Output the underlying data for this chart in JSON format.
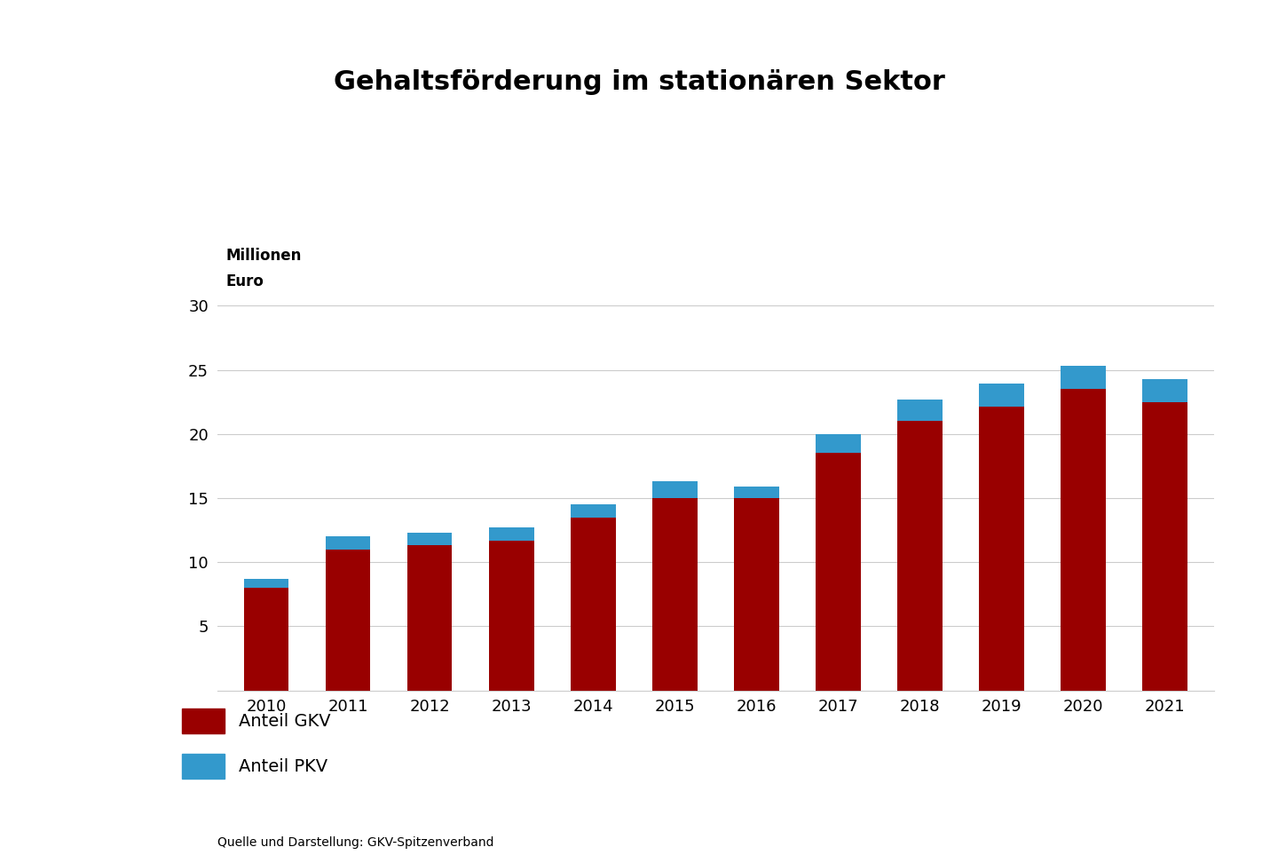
{
  "title": "Gehaltsförderung im stationären Sektor",
  "ylabel_line1": "Millionen",
  "ylabel_line2": "Euro",
  "source": "Quelle und Darstellung: GKV-Spitzenverband",
  "years": [
    2010,
    2011,
    2012,
    2013,
    2014,
    2015,
    2016,
    2017,
    2018,
    2019,
    2020,
    2021
  ],
  "gkv": [
    8.0,
    11.0,
    11.3,
    11.7,
    13.5,
    15.0,
    15.0,
    18.5,
    21.0,
    22.1,
    23.5,
    22.5
  ],
  "pkv": [
    0.7,
    1.0,
    1.0,
    1.0,
    1.0,
    1.3,
    0.9,
    1.5,
    1.7,
    1.8,
    1.8,
    1.8
  ],
  "color_gkv": "#990000",
  "color_pkv": "#3399cc",
  "background_color": "#ffffff",
  "ylim": [
    0,
    35
  ],
  "yticks": [
    5,
    10,
    15,
    20,
    25,
    30
  ],
  "bar_width": 0.55,
  "title_fontsize": 22,
  "legend_fontsize": 14,
  "axis_fontsize": 12,
  "tick_fontsize": 13,
  "legend_gkv": "Anteil GKV",
  "legend_pkv": "Anteil PKV"
}
